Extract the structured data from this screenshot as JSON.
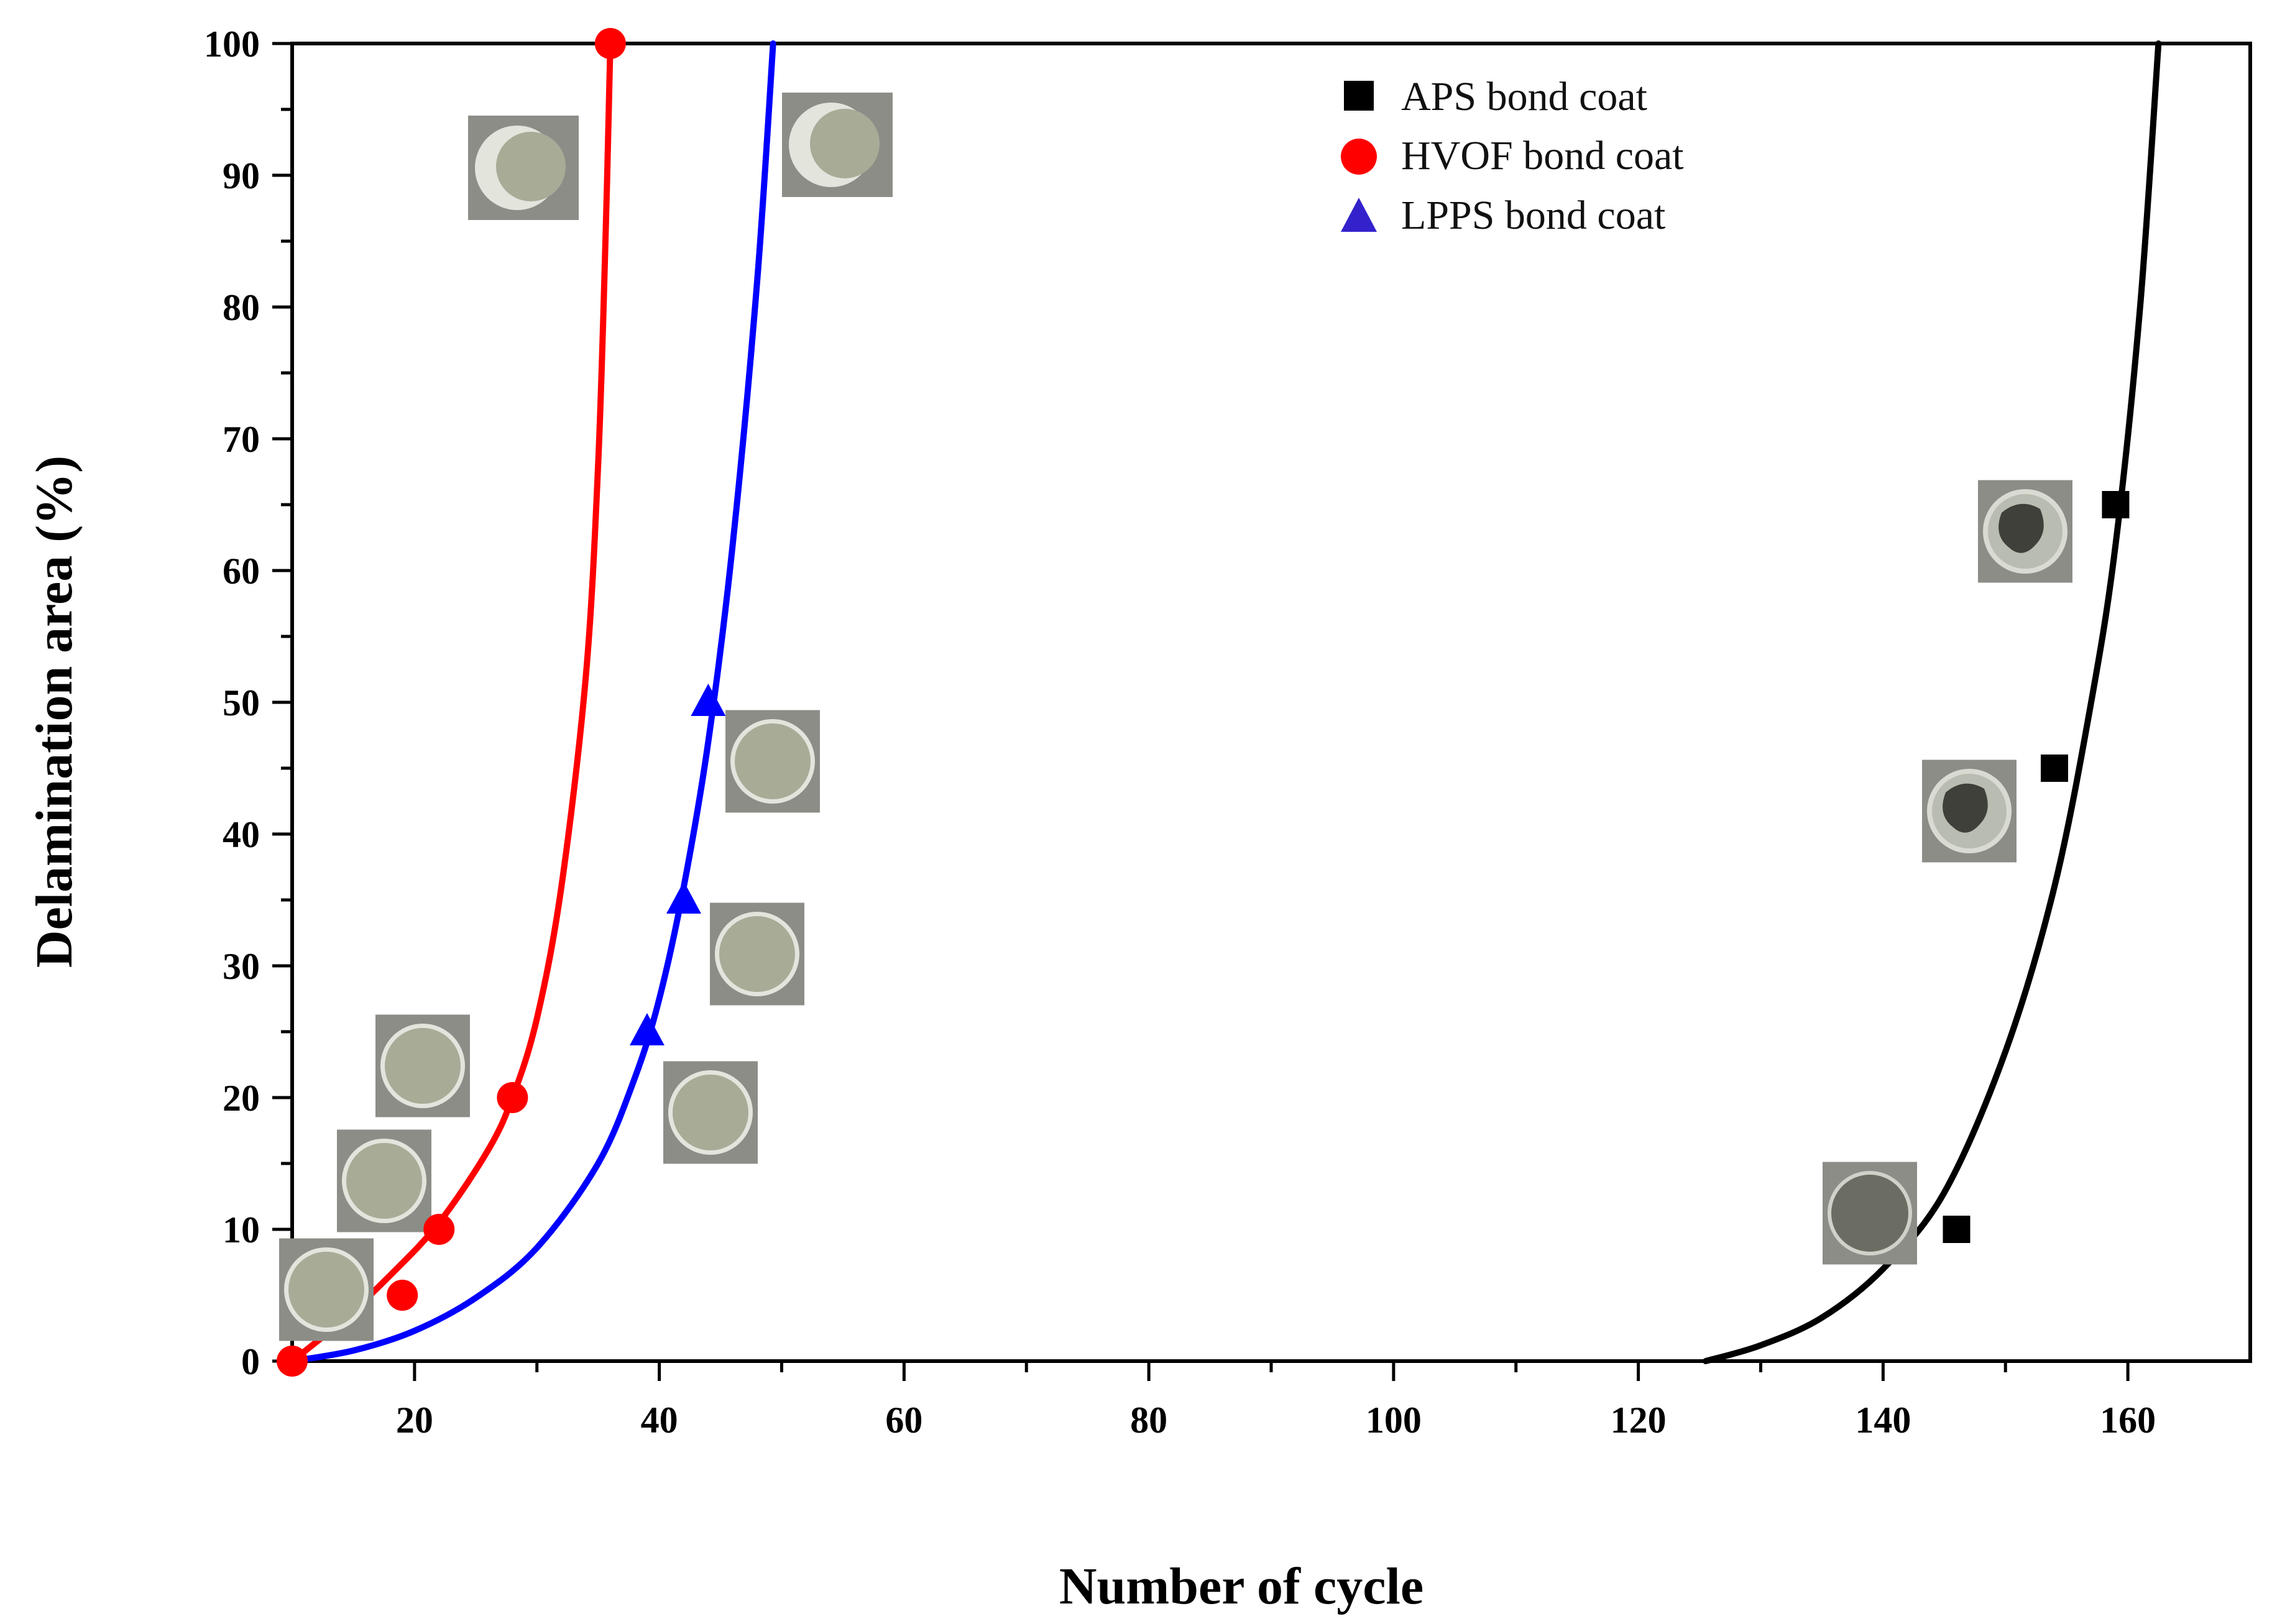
{
  "chart_data": {
    "type": "scatter",
    "title": "",
    "xlabel": "Number of cycle",
    "ylabel": "Delamination area (%)",
    "xlim": [
      10,
      170
    ],
    "ylim": [
      0,
      100
    ],
    "x_ticks": [
      20,
      40,
      60,
      80,
      100,
      120,
      140,
      160
    ],
    "y_ticks": [
      0,
      10,
      20,
      30,
      40,
      50,
      60,
      70,
      80,
      90,
      100
    ],
    "legend_position": "top-center",
    "series": [
      {
        "name": "APS bond coat",
        "marker": "square",
        "color": "#000000",
        "points": [
          [
            146,
            10
          ],
          [
            154,
            45
          ],
          [
            159,
            65
          ]
        ],
        "fit_curve": [
          [
            125.5,
            0
          ],
          [
            130,
            1.2
          ],
          [
            135,
            3.3
          ],
          [
            140,
            7
          ],
          [
            145,
            12.8
          ],
          [
            150,
            23.5
          ],
          [
            154,
            36
          ],
          [
            157,
            50
          ],
          [
            159,
            62
          ],
          [
            161,
            80
          ],
          [
            162.5,
            100
          ]
        ]
      },
      {
        "name": "HVOF bond coat",
        "marker": "circle",
        "color": "#ff0000",
        "points": [
          [
            10,
            0
          ],
          [
            19,
            5
          ],
          [
            22,
            10
          ],
          [
            28,
            20
          ],
          [
            36,
            100
          ]
        ],
        "fit_curve": [
          [
            10,
            0
          ],
          [
            14,
            3
          ],
          [
            18,
            6.5
          ],
          [
            22,
            10.5
          ],
          [
            26,
            16
          ],
          [
            28,
            20
          ],
          [
            30,
            26
          ],
          [
            32,
            36
          ],
          [
            34,
            52
          ],
          [
            35,
            68
          ],
          [
            35.6,
            85
          ],
          [
            36,
            100
          ]
        ]
      },
      {
        "name": "LPPS bond coat",
        "marker": "triangle",
        "color": "#0000ff",
        "points": [
          [
            39,
            25
          ],
          [
            42,
            35
          ],
          [
            44,
            50
          ]
        ],
        "fit_curve": [
          [
            10,
            0
          ],
          [
            15,
            0.8
          ],
          [
            20,
            2.3
          ],
          [
            25,
            4.8
          ],
          [
            30,
            8.6
          ],
          [
            35,
            15
          ],
          [
            38,
            21.5
          ],
          [
            40,
            27.5
          ],
          [
            42,
            36
          ],
          [
            44,
            47
          ],
          [
            46,
            62
          ],
          [
            48,
            82
          ],
          [
            49.3,
            100
          ]
        ]
      }
    ],
    "annotations": "photographs of delaminated coating specimens placed next to data points"
  },
  "colors": {
    "background": "#ffffff",
    "axis": "#000000",
    "aps": "#000000",
    "hvof": "#ff0000",
    "lpps": "#0000ff",
    "specimen_fill": "#a8ab96",
    "specimen_rim": "#e3e5dd",
    "specimen_bg": "#8d8d88",
    "delamination": "#3e4039"
  },
  "specimen_photos": [
    {
      "name": "hvof-specimen-5",
      "near_point": [
        19,
        5
      ],
      "type": "light"
    },
    {
      "name": "hvof-specimen-10",
      "near_point": [
        22,
        10
      ],
      "type": "light"
    },
    {
      "name": "hvof-specimen-20",
      "near_point": [
        28,
        20
      ],
      "type": "light"
    },
    {
      "name": "hvof-specimen-100",
      "near_point": [
        36,
        100
      ],
      "type": "full"
    },
    {
      "name": "lpps-specimen-25",
      "near_point": [
        39,
        25
      ],
      "type": "light"
    },
    {
      "name": "lpps-specimen-35",
      "near_point": [
        42,
        35
      ],
      "type": "light"
    },
    {
      "name": "lpps-specimen-50",
      "near_point": [
        44,
        50
      ],
      "type": "light"
    },
    {
      "name": "lpps-specimen-100",
      "near_point": [
        49,
        100
      ],
      "type": "full"
    },
    {
      "name": "aps-specimen-10",
      "near_point": [
        146,
        10
      ],
      "type": "dark"
    },
    {
      "name": "aps-specimen-45",
      "near_point": [
        154,
        45
      ],
      "type": "patch"
    },
    {
      "name": "aps-specimen-65",
      "near_point": [
        159,
        65
      ],
      "type": "patch"
    }
  ]
}
